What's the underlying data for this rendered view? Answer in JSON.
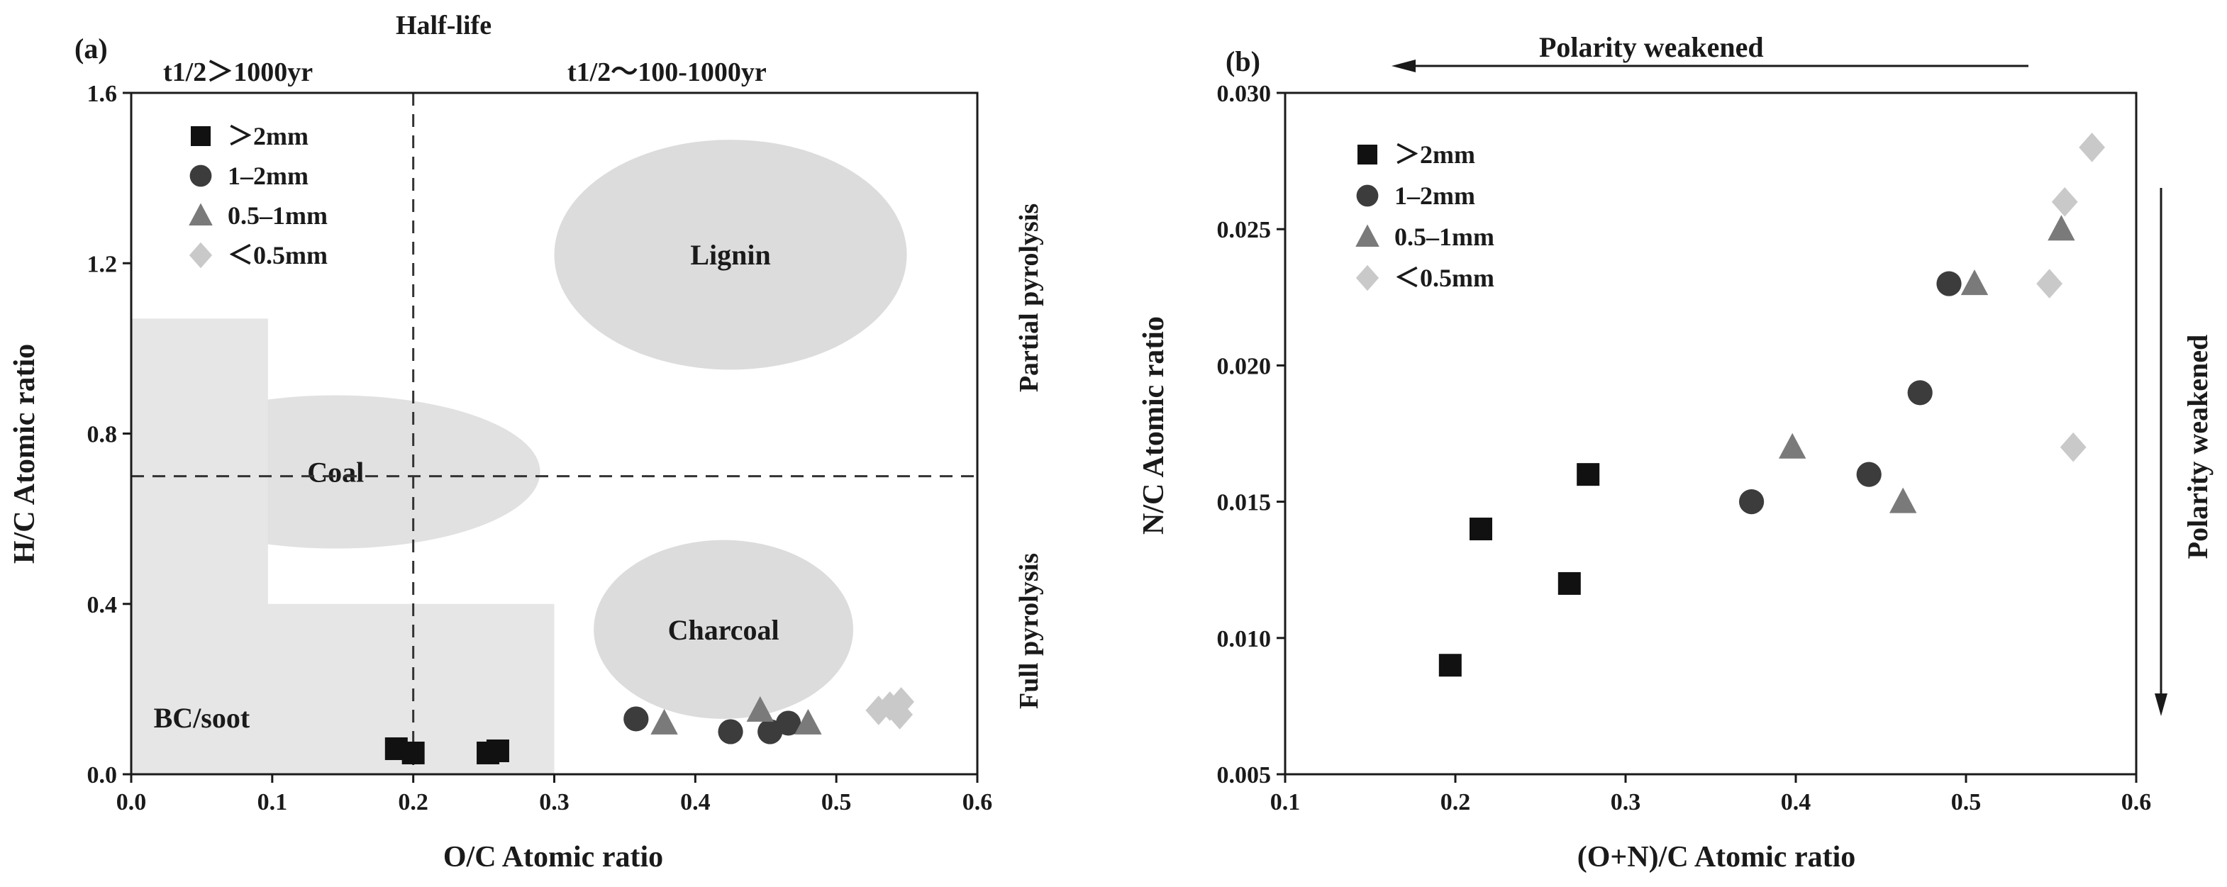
{
  "chart_data": [
    {
      "type": "scatter",
      "panel_label": "(a)",
      "xlabel": "O/C Atomic ratio",
      "ylabel": "H/C Atomic ratio",
      "xlim": [
        0.0,
        0.6
      ],
      "ylim": [
        0.0,
        1.6
      ],
      "xticks": [
        "0.0",
        "0.1",
        "0.2",
        "0.3",
        "0.4",
        "0.5",
        "0.6"
      ],
      "yticks": [
        "0.0",
        "0.4",
        "0.8",
        "1.2",
        "1.6"
      ],
      "header_title": "Half-life",
      "left_header": "t1/2＞1000yr",
      "right_header": "t1/2～100-1000yr",
      "side_top": "Partial pyrolysis",
      "side_bottom": "Full pyrolysis",
      "reference_lines": {
        "vertical_x": 0.2,
        "horizontal_y": 0.7
      },
      "regions": [
        {
          "name": "Lignin",
          "shape": "ellipse",
          "cx": 0.425,
          "cy": 1.22,
          "rx": 0.125,
          "ry": 0.27
        },
        {
          "name": "Coal",
          "shape": "ellipse",
          "cx": 0.145,
          "cy": 0.71,
          "rx": 0.145,
          "ry": 0.18
        },
        {
          "name": "Charcoal",
          "shape": "ellipse",
          "cx": 0.42,
          "cy": 0.34,
          "rx": 0.092,
          "ry": 0.21
        },
        {
          "name": "BC/soot",
          "shape": "rect",
          "x0": 0.0,
          "x1": 0.3,
          "y0": 0.0,
          "y1": 0.4,
          "extra_rect": {
            "x0": 0.0,
            "x1": 0.097,
            "y0": 0.0,
            "y1": 1.07
          }
        }
      ],
      "series": [
        {
          "name": "＞2mm",
          "marker": "square",
          "color": "#111111",
          "points": [
            [
              0.188,
              0.06
            ],
            [
              0.2,
              0.05
            ],
            [
              0.253,
              0.05
            ],
            [
              0.26,
              0.055
            ]
          ]
        },
        {
          "name": "1–2mm",
          "marker": "circle",
          "color": "#3c3c3c",
          "points": [
            [
              0.358,
              0.13
            ],
            [
              0.425,
              0.1
            ],
            [
              0.453,
              0.1
            ],
            [
              0.466,
              0.12
            ]
          ]
        },
        {
          "name": "0.5–1mm",
          "marker": "triangle",
          "color": "#7a7a7a",
          "points": [
            [
              0.378,
              0.12
            ],
            [
              0.446,
              0.15
            ],
            [
              0.48,
              0.12
            ]
          ]
        },
        {
          "name": "＜0.5mm",
          "marker": "diamond",
          "color": "#c9c9c9",
          "points": [
            [
              0.53,
              0.15
            ],
            [
              0.538,
              0.16
            ],
            [
              0.546,
              0.17
            ],
            [
              0.545,
              0.14
            ]
          ]
        }
      ]
    },
    {
      "type": "scatter",
      "panel_label": "(b)",
      "xlabel": "(O+N)/C Atomic ratio",
      "ylabel": "N/C Atomic ratio",
      "xlim": [
        0.1,
        0.6
      ],
      "ylim": [
        0.005,
        0.03
      ],
      "xticks": [
        "0.1",
        "0.2",
        "0.3",
        "0.4",
        "0.5",
        "0.6"
      ],
      "yticks": [
        "0.005",
        "0.010",
        "0.015",
        "0.020",
        "0.025",
        "0.030"
      ],
      "top_arrow_label": "Polarity weakened",
      "side_arrow_label": "Polarity weakened",
      "series": [
        {
          "name": "＞2mm",
          "marker": "square",
          "color": "#111111",
          "points": [
            [
              0.197,
              0.009
            ],
            [
              0.215,
              0.014
            ],
            [
              0.267,
              0.012
            ],
            [
              0.278,
              0.016
            ]
          ]
        },
        {
          "name": "1–2mm",
          "marker": "circle",
          "color": "#3c3c3c",
          "points": [
            [
              0.374,
              0.015
            ],
            [
              0.443,
              0.016
            ],
            [
              0.473,
              0.019
            ],
            [
              0.49,
              0.023
            ]
          ]
        },
        {
          "name": "0.5–1mm",
          "marker": "triangle",
          "color": "#7a7a7a",
          "points": [
            [
              0.398,
              0.017
            ],
            [
              0.463,
              0.015
            ],
            [
              0.505,
              0.023
            ],
            [
              0.556,
              0.025
            ]
          ]
        },
        {
          "name": "＜0.5mm",
          "marker": "diamond",
          "color": "#c9c9c9",
          "points": [
            [
              0.549,
              0.023
            ],
            [
              0.558,
              0.026
            ],
            [
              0.563,
              0.017
            ],
            [
              0.574,
              0.028
            ]
          ]
        }
      ]
    }
  ]
}
